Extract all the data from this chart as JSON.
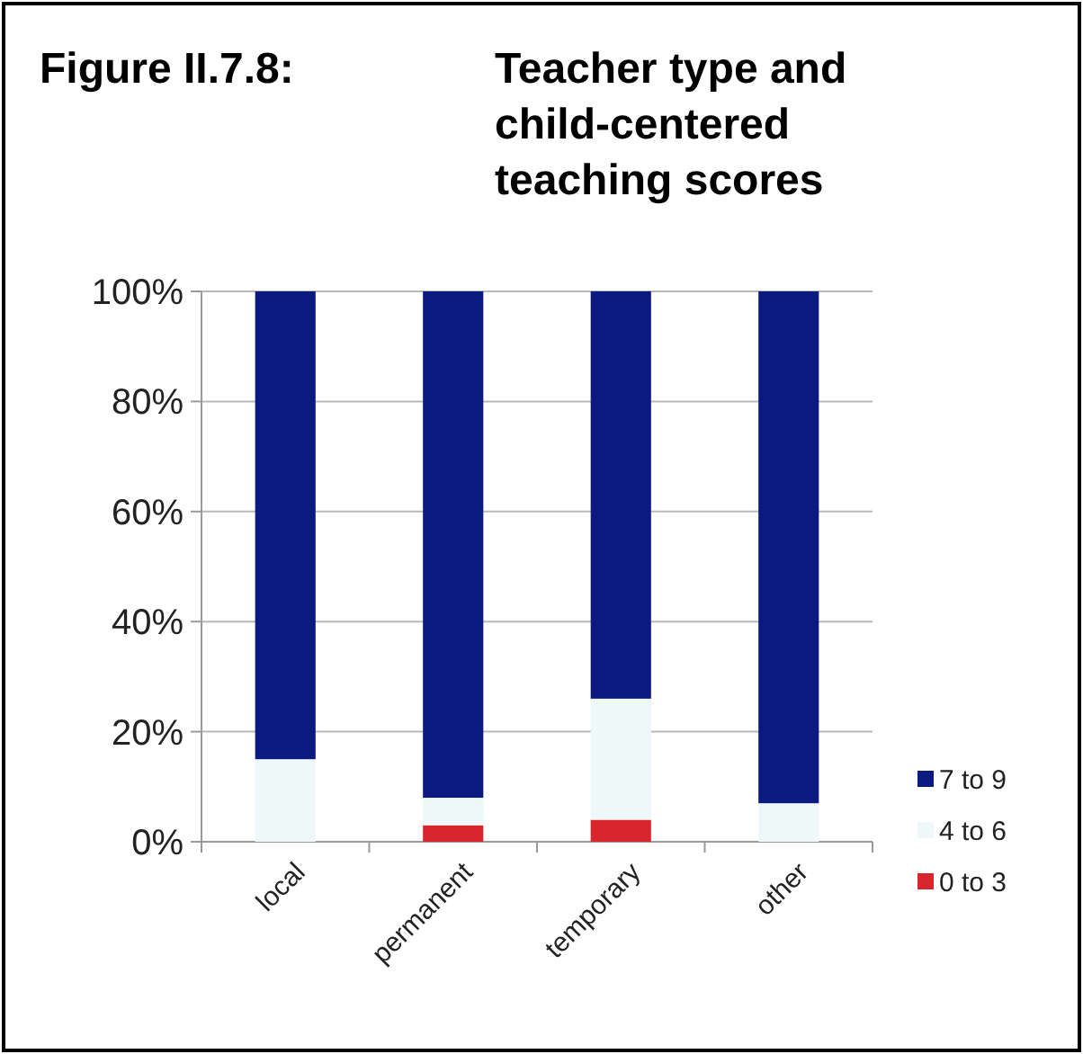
{
  "chart_data": {
    "type": "bar",
    "title": "Figure II.7.8:",
    "subtitle": "Teacher type and child-centered teaching scores",
    "categories": [
      "local",
      "permanent",
      "temporary",
      "other"
    ],
    "stacked": true,
    "series": [
      {
        "name": "0 to 3",
        "color": "#d9262c",
        "values": [
          0,
          3,
          4,
          0
        ]
      },
      {
        "name": "4 to 6",
        "color": "#eef8f8",
        "values": [
          15,
          5,
          22,
          7
        ]
      },
      {
        "name": "7 to 9",
        "color": "#0a1a80",
        "values": [
          85,
          92,
          74,
          93
        ]
      }
    ],
    "ylim": [
      0,
      100
    ],
    "yticks": [
      {
        "value": 0,
        "label": "0%"
      },
      {
        "value": 20,
        "label": "20%"
      },
      {
        "value": 40,
        "label": "40%"
      },
      {
        "value": 60,
        "label": "60%"
      },
      {
        "value": 80,
        "label": "80%"
      },
      {
        "value": 100,
        "label": "100%"
      }
    ],
    "grid": "y",
    "legend": "right"
  }
}
